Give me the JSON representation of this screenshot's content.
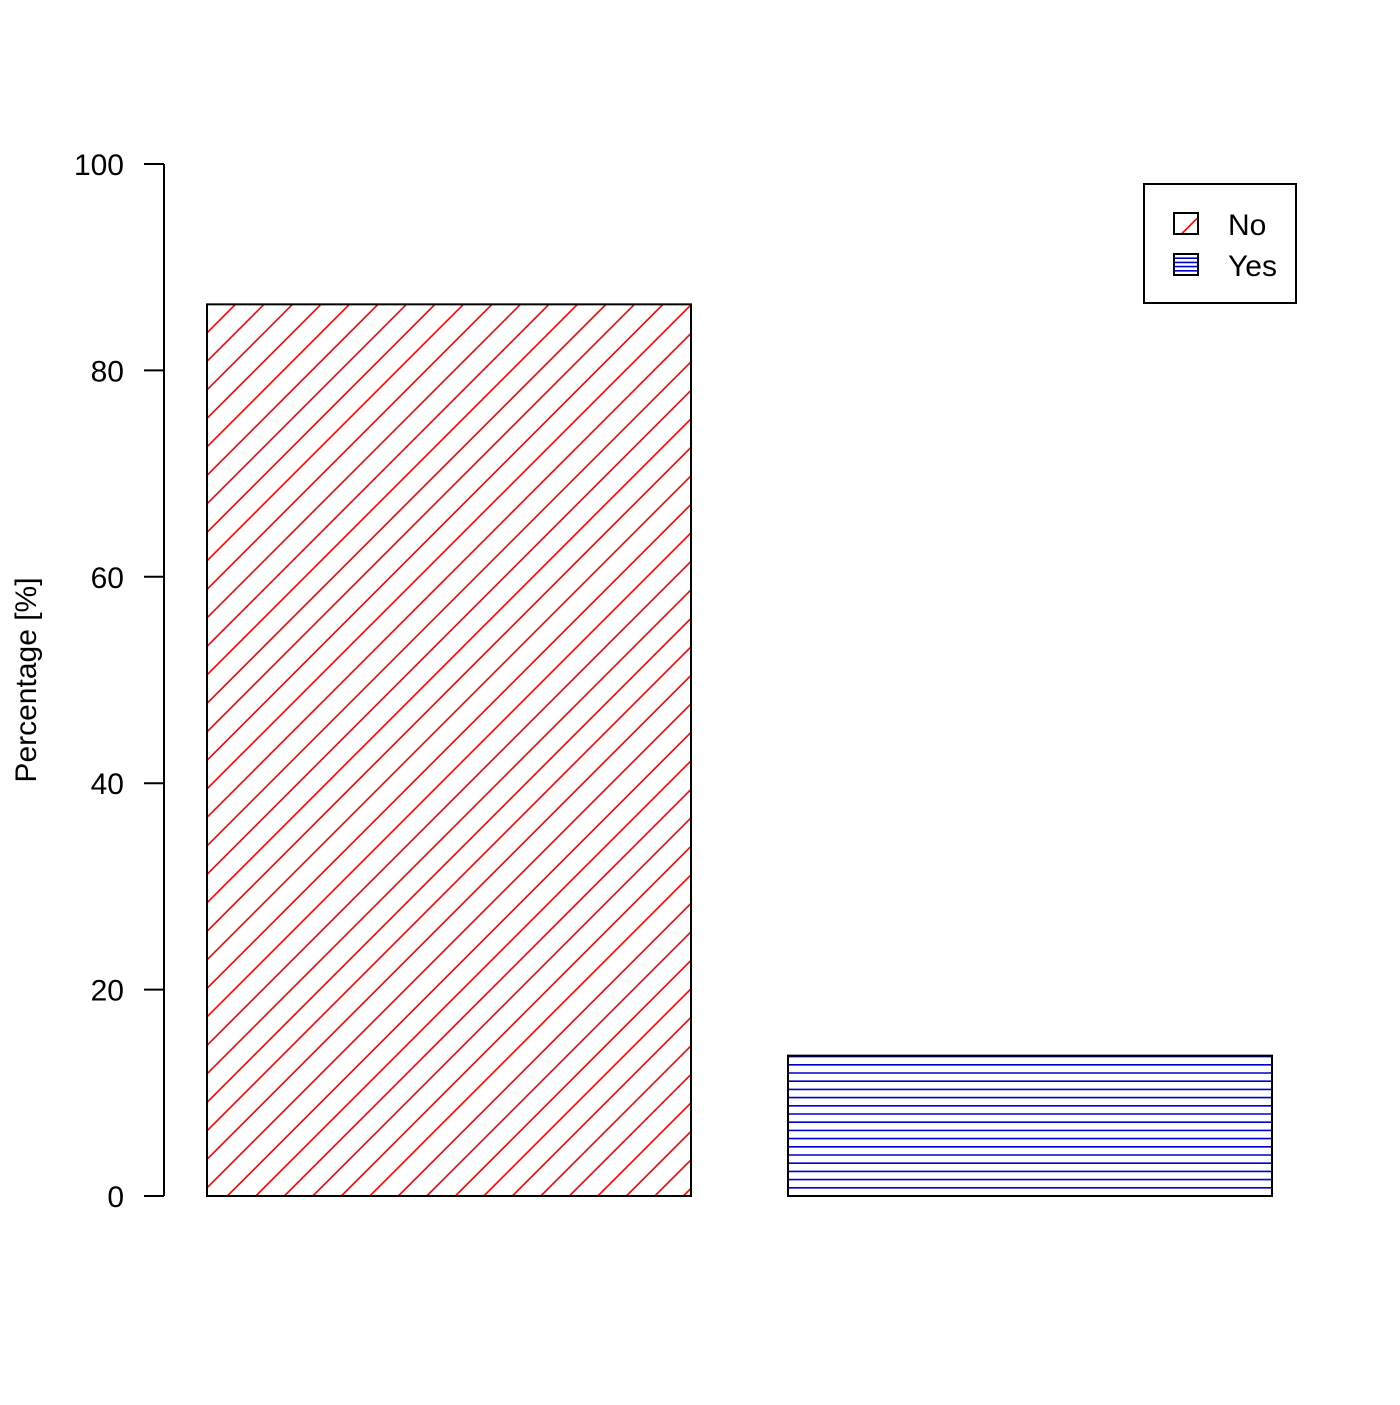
{
  "chart_data": {
    "type": "bar",
    "categories": [
      "No",
      "Yes"
    ],
    "values": [
      86.4,
      13.6
    ],
    "title": "",
    "xlabel": "",
    "ylabel": "Percentage [%]",
    "ylim": [
      0,
      100
    ],
    "yticks": [
      0,
      20,
      40,
      60,
      80,
      100
    ],
    "grid": false,
    "legend": {
      "placement": "top-right",
      "entries": [
        "No",
        "Yes"
      ]
    },
    "series_colors": {
      "No": "#ff0000",
      "Yes": "#0000cc"
    },
    "fill_patterns": {
      "No": "diagonal-hatch",
      "Yes": "horizontal-lines"
    }
  }
}
